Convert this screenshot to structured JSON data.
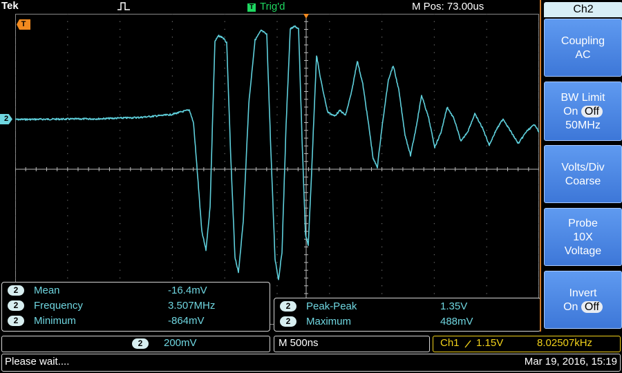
{
  "header": {
    "brand": "Tek",
    "trigger_state": "Trig'd",
    "trigger_badge": "T",
    "horizontal_position": "M Pos: 73.00us"
  },
  "screen": {
    "channel_marker": "2",
    "trigger_marker": "T"
  },
  "measurements_left": [
    {
      "channel": "2",
      "name": "Mean",
      "value": "-16.4mV"
    },
    {
      "channel": "2",
      "name": "Frequency",
      "value": "3.507MHz"
    },
    {
      "channel": "2",
      "name": "Minimum",
      "value": "-864mV"
    }
  ],
  "measurements_right": [
    {
      "channel": "2",
      "name": "Peak-Peak",
      "value": "1.35V"
    },
    {
      "channel": "2",
      "name": "Maximum",
      "value": "488mV"
    }
  ],
  "status": {
    "channel": "2",
    "volts_per_div": "200mV",
    "time_per_div": "M 500ns",
    "trigger_source": "Ch1",
    "trigger_level": "1.15V",
    "trigger_frequency": "8.02507kHz",
    "message": "Please wait....",
    "datetime": "Mar 19, 2016, 15:19"
  },
  "menu": {
    "title": "Ch2",
    "coupling_label": "Coupling",
    "coupling_value": "AC",
    "bw_label": "BW Limit",
    "bw_on": "On",
    "bw_off": "Off",
    "bw_value": "50MHz",
    "volts_label": "Volts/Div",
    "volts_value": "Coarse",
    "probe_label": "Probe",
    "probe_atten": "10X",
    "probe_type": "Voltage",
    "invert_label": "Invert",
    "invert_on": "On",
    "invert_off": "Off"
  },
  "colors": {
    "trace": "#5fd0dc",
    "grid": "#8a8a8a",
    "trigger_ok": "#1ed760",
    "trigger_marker": "#f28a1f",
    "trigger_status": "#f2d21a"
  }
}
